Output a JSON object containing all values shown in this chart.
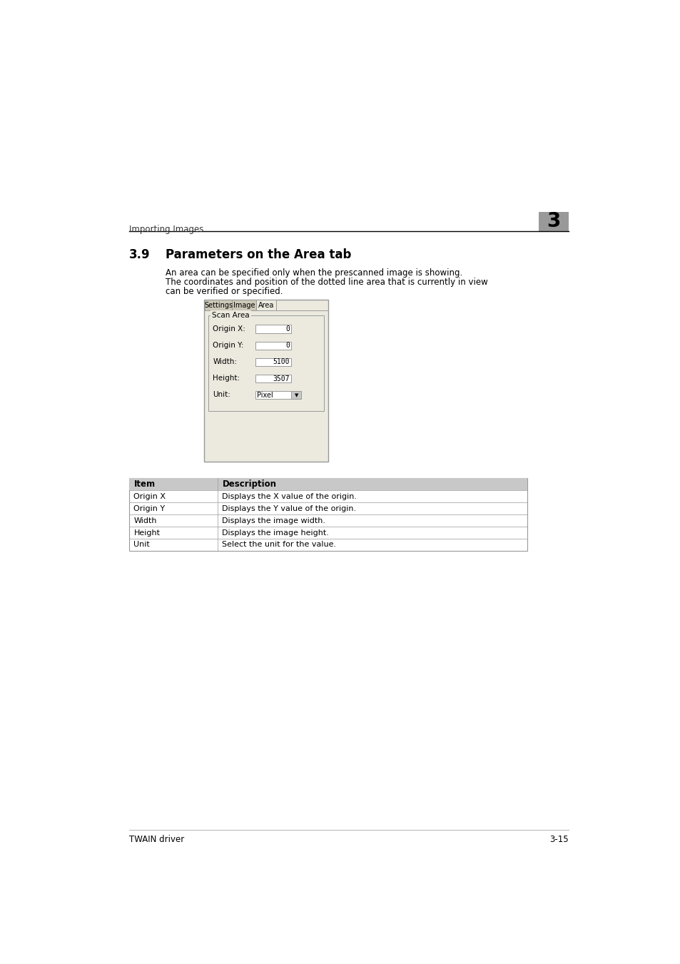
{
  "page_bg": "#ffffff",
  "header_text": "Importing Images",
  "header_number": "3",
  "section_number": "3.9",
  "section_title": "Parameters on the Area tab",
  "body_text_line1": "An area can be specified only when the prescanned image is showing.",
  "body_text_line2": "The coordinates and position of the dotted line area that is currently in view",
  "body_text_line3": "can be verified or specified.",
  "dialog_tabs": [
    "Settings",
    "Image",
    "Area"
  ],
  "scan_area_label": "Scan Area",
  "dialog_fields": [
    {
      "label": "Origin X:",
      "value": "0",
      "underline_char": "X",
      "dropdown": false
    },
    {
      "label": "Origin Y:",
      "value": "0",
      "underline_char": "Y",
      "dropdown": false
    },
    {
      "label": "Width:",
      "value": "5100",
      "underline_char": "W",
      "dropdown": false
    },
    {
      "label": "Height:",
      "value": "3507",
      "underline_char": "H",
      "dropdown": false
    },
    {
      "label": "Unit:",
      "value": "Pixel",
      "underline_char": "U",
      "dropdown": true
    }
  ],
  "table_headers": [
    "Item",
    "Description"
  ],
  "table_rows": [
    [
      "Origin X",
      "Displays the X value of the origin."
    ],
    [
      "Origin Y",
      "Displays the Y value of the origin."
    ],
    [
      "Width",
      "Displays the image width."
    ],
    [
      "Height",
      "Displays the image height."
    ],
    [
      "Unit",
      "Select the unit for the value."
    ]
  ],
  "footer_left": "TWAIN driver",
  "footer_right": "3-15",
  "dialog_bg": "#eceadf",
  "input_bg": "#ffffff",
  "table_header_bg": "#c8c8c8",
  "table_row_bg": "#ffffff",
  "number_box_bg": "#999999",
  "header_line_color": "#000000",
  "text_color": "#000000",
  "border_color": "#999999"
}
